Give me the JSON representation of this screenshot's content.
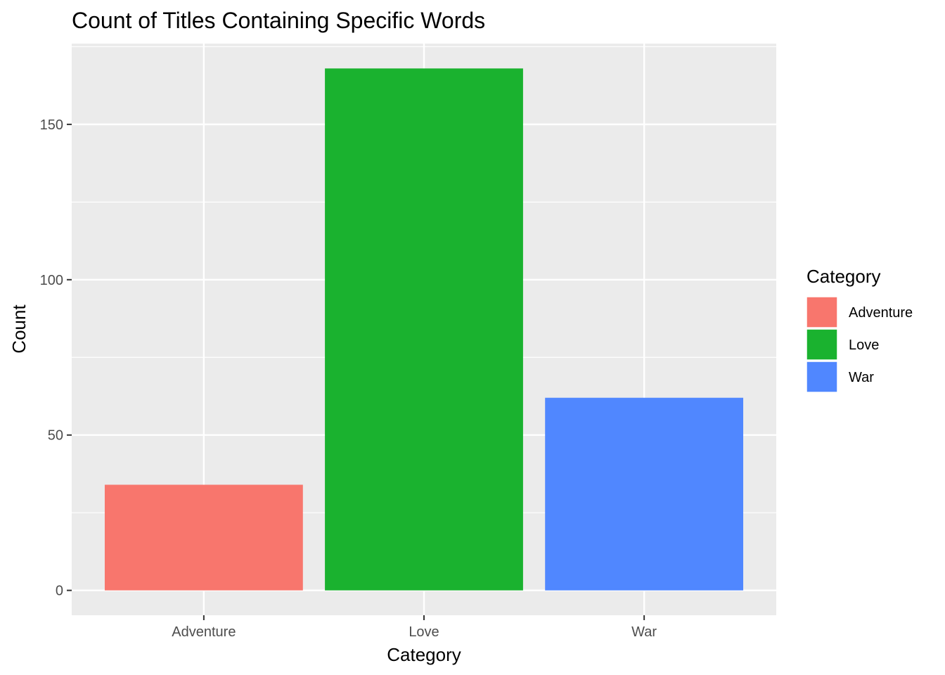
{
  "chart_data": {
    "type": "bar",
    "title": "Count of Titles Containing Specific Words",
    "xlabel": "Category",
    "ylabel": "Count",
    "categories": [
      "Adventure",
      "Love",
      "War"
    ],
    "values": [
      34,
      168,
      62
    ],
    "colors": [
      "#F8766D",
      "#1AB22F",
      "#5087FF"
    ],
    "ylim": [
      -8,
      176
    ],
    "yticks": [
      0,
      50,
      100,
      150
    ],
    "grid": true,
    "legend": {
      "title": "Category",
      "position": "right",
      "entries": [
        "Adventure",
        "Love",
        "War"
      ]
    }
  }
}
